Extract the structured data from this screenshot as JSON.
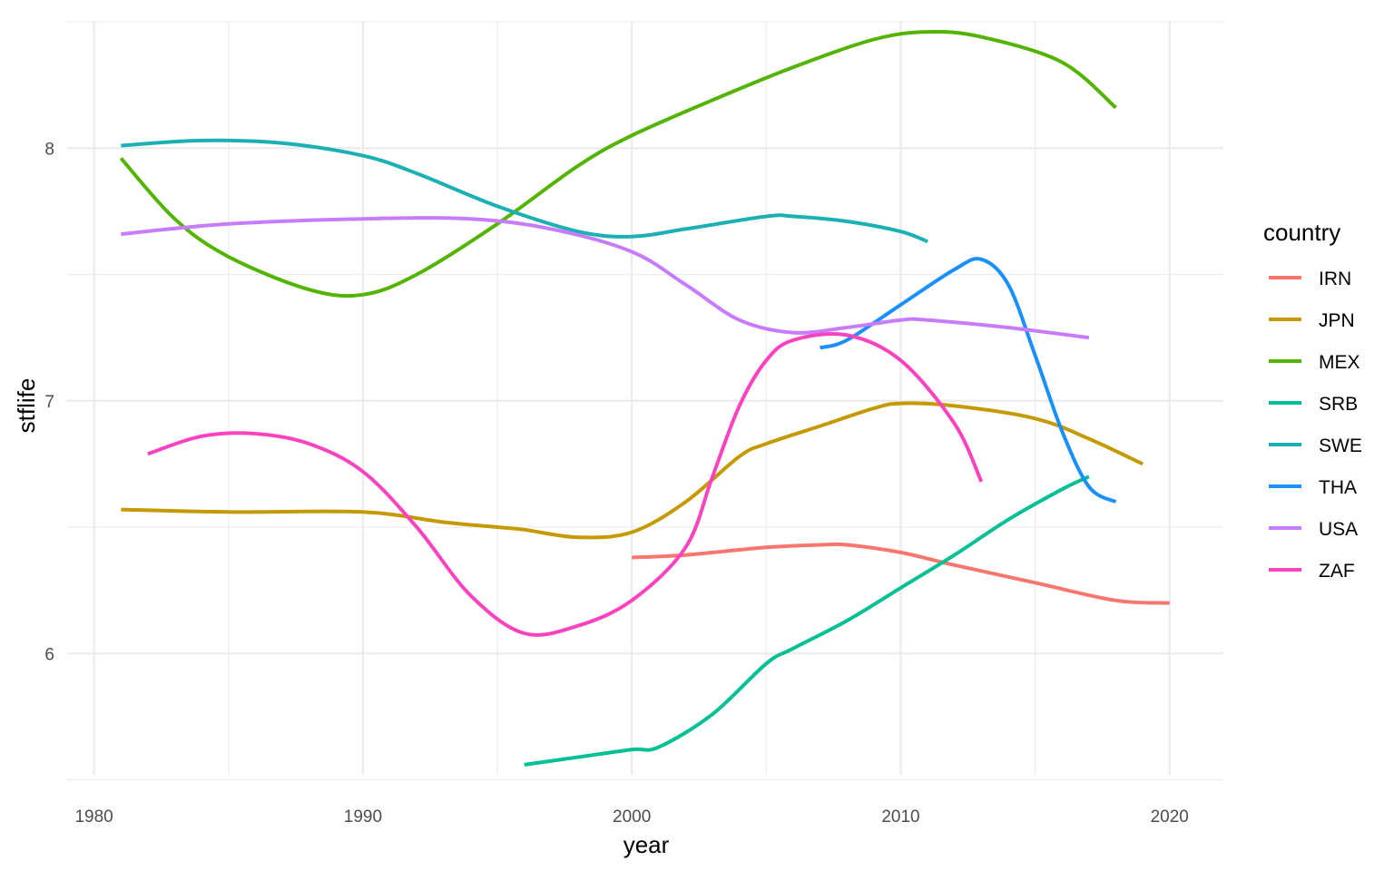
{
  "chart_data": {
    "type": "line",
    "xlabel": "year",
    "ylabel": "stflife",
    "xlim": [
      1979,
      2022
    ],
    "ylim": [
      5.52,
      8.5
    ],
    "x_ticks": [
      1980,
      1990,
      2000,
      2010,
      2020
    ],
    "x_minor_ticks": [
      1985,
      1995,
      2005,
      2015
    ],
    "y_ticks": [
      6,
      7,
      8
    ],
    "y_minor_ticks": [
      5.5,
      6.5,
      7.5,
      8.5
    ],
    "x_tick_labels": [
      "1980",
      "1990",
      "2000",
      "2010",
      "2020"
    ],
    "y_tick_labels": [
      "6",
      "7",
      "8"
    ],
    "grid": true,
    "legend": {
      "title": "country",
      "position": "right",
      "entries": [
        "IRN",
        "JPN",
        "MEX",
        "SRB",
        "SWE",
        "THA",
        "USA",
        "ZAF"
      ]
    },
    "series": [
      {
        "name": "IRN",
        "color": "#F8766D",
        "points": [
          [
            2000,
            6.38
          ],
          [
            2002,
            6.39
          ],
          [
            2005,
            6.42
          ],
          [
            2007,
            6.43
          ],
          [
            2008,
            6.43
          ],
          [
            2010,
            6.4
          ],
          [
            2012,
            6.35
          ],
          [
            2015,
            6.28
          ],
          [
            2018,
            6.21
          ],
          [
            2020,
            6.2
          ]
        ]
      },
      {
        "name": "JPN",
        "color": "#C49A00",
        "points": [
          [
            1981,
            6.57
          ],
          [
            1985,
            6.56
          ],
          [
            1990,
            6.56
          ],
          [
            1993,
            6.52
          ],
          [
            1995,
            6.5
          ],
          [
            1996,
            6.49
          ],
          [
            1998,
            6.46
          ],
          [
            2000,
            6.48
          ],
          [
            2002,
            6.6
          ],
          [
            2004,
            6.78
          ],
          [
            2005,
            6.83
          ],
          [
            2007,
            6.9
          ],
          [
            2009,
            6.97
          ],
          [
            2010,
            6.99
          ],
          [
            2012,
            6.98
          ],
          [
            2015,
            6.93
          ],
          [
            2017,
            6.85
          ],
          [
            2019,
            6.75
          ]
        ]
      },
      {
        "name": "MEX",
        "color": "#53B400",
        "points": [
          [
            1981,
            7.96
          ],
          [
            1983,
            7.72
          ],
          [
            1985,
            7.57
          ],
          [
            1988,
            7.44
          ],
          [
            1990,
            7.42
          ],
          [
            1992,
            7.5
          ],
          [
            1995,
            7.7
          ],
          [
            1998,
            7.93
          ],
          [
            2000,
            8.05
          ],
          [
            2003,
            8.19
          ],
          [
            2006,
            8.32
          ],
          [
            2009,
            8.43
          ],
          [
            2011,
            8.46
          ],
          [
            2013,
            8.44
          ],
          [
            2016,
            8.34
          ],
          [
            2018,
            8.16
          ]
        ]
      },
      {
        "name": "SRB",
        "color": "#00C094",
        "points": [
          [
            1996,
            5.56
          ],
          [
            1998,
            5.59
          ],
          [
            2000,
            5.62
          ],
          [
            2001,
            5.63
          ],
          [
            2003,
            5.76
          ],
          [
            2005,
            5.96
          ],
          [
            2006,
            6.02
          ],
          [
            2008,
            6.13
          ],
          [
            2010,
            6.26
          ],
          [
            2012,
            6.39
          ],
          [
            2014,
            6.53
          ],
          [
            2016,
            6.65
          ],
          [
            2017,
            6.7
          ]
        ]
      },
      {
        "name": "SWE",
        "color": "#00B6EB",
        "stroke": "#1AB0B4",
        "points": [
          [
            1981,
            8.01
          ],
          [
            1984,
            8.03
          ],
          [
            1987,
            8.02
          ],
          [
            1990,
            7.97
          ],
          [
            1992,
            7.9
          ],
          [
            1995,
            7.77
          ],
          [
            1998,
            7.67
          ],
          [
            2000,
            7.65
          ],
          [
            2002,
            7.68
          ],
          [
            2005,
            7.73
          ],
          [
            2006,
            7.73
          ],
          [
            2008,
            7.71
          ],
          [
            2010,
            7.67
          ],
          [
            2011,
            7.63
          ]
        ]
      },
      {
        "name": "THA",
        "color": "#1A8FFF",
        "points": [
          [
            2007,
            7.21
          ],
          [
            2008,
            7.24
          ],
          [
            2010,
            7.38
          ],
          [
            2012,
            7.52
          ],
          [
            2013,
            7.56
          ],
          [
            2014,
            7.46
          ],
          [
            2015,
            7.18
          ],
          [
            2016,
            6.88
          ],
          [
            2017,
            6.66
          ],
          [
            2018,
            6.6
          ]
        ]
      },
      {
        "name": "USA",
        "color": "#C77CFF",
        "points": [
          [
            1981,
            7.66
          ],
          [
            1985,
            7.7
          ],
          [
            1990,
            7.72
          ],
          [
            1994,
            7.72
          ],
          [
            1997,
            7.68
          ],
          [
            2000,
            7.59
          ],
          [
            2002,
            7.46
          ],
          [
            2004,
            7.32
          ],
          [
            2006,
            7.27
          ],
          [
            2008,
            7.29
          ],
          [
            2010,
            7.32
          ],
          [
            2011,
            7.32
          ],
          [
            2014,
            7.29
          ],
          [
            2017,
            7.25
          ]
        ]
      },
      {
        "name": "ZAF",
        "color": "#FF45C3",
        "stroke": "#FB43C0",
        "points": [
          [
            1982,
            6.79
          ],
          [
            1984,
            6.86
          ],
          [
            1986,
            6.87
          ],
          [
            1988,
            6.83
          ],
          [
            1990,
            6.72
          ],
          [
            1992,
            6.5
          ],
          [
            1994,
            6.23
          ],
          [
            1996,
            6.08
          ],
          [
            1998,
            6.11
          ],
          [
            2000,
            6.21
          ],
          [
            2002,
            6.42
          ],
          [
            2003,
            6.7
          ],
          [
            2004,
            6.98
          ],
          [
            2005,
            7.16
          ],
          [
            2006,
            7.24
          ],
          [
            2008,
            7.26
          ],
          [
            2010,
            7.16
          ],
          [
            2012,
            6.91
          ],
          [
            2013,
            6.68
          ]
        ]
      }
    ]
  }
}
